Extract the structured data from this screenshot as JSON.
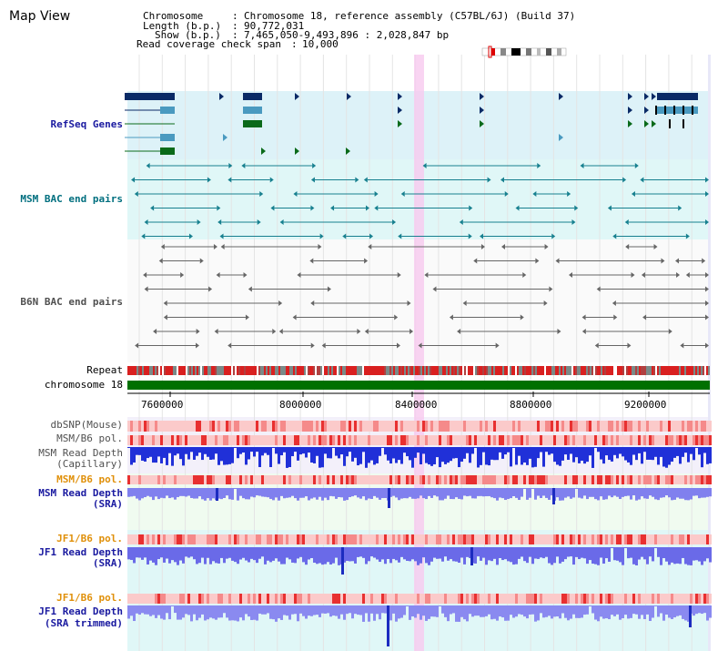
{
  "title": "Map View",
  "header": {
    "chromosome_key": "Chromosome",
    "chromosome_val": "Chromosome 18, reference assembly (C57BL/6J) (Build 37)",
    "length_key": "Length (b.p.)",
    "length_val": "90,772,031",
    "show_key": "Show (b.p.)",
    "show_val": "7,465,050-9,493,896 : 2,028,847 bp",
    "coverage_key": "Read coverage check span",
    "coverage_val": "10,000"
  },
  "tracks": {
    "refseq": "RefSeq Genes",
    "msm_bac": "MSM BAC end pairs",
    "b6n_bac": "B6N BAC end pairs",
    "repeat": "Repeat",
    "chromosome": "chromosome 18",
    "dbsnp": "dbSNP(Mouse)",
    "msm_b6_pol_1": "MSM/B6 pol.",
    "msm_read_depth_cap_1": "MSM Read Depth",
    "msm_read_depth_cap_2": "(Capillary)",
    "msm_b6_pol_2": "MSM/B6 pol.",
    "msm_read_depth_sra_1": "MSM Read Depth",
    "msm_read_depth_sra_2": "(SRA)",
    "jf1_b6_pol_1": "JF1/B6 pol.",
    "jf1_read_depth_sra_1": "JF1 Read Depth",
    "jf1_read_depth_sra_2": "(SRA)",
    "jf1_b6_pol_2": "JF1/B6 pol.",
    "jf1_read_depth_trim_1": "JF1 Read Depth",
    "jf1_read_depth_trim_2": "(SRA trimmed)"
  },
  "ruler": [
    "7600000",
    "8000000",
    "8400000",
    "8800000",
    "9200000"
  ],
  "colors": {
    "refseq_label": "#1a1aa0",
    "msm_label": "#006f7f",
    "b6n_label": "#505050",
    "orange_label": "#e0900a",
    "blue_label": "#1a1aa0",
    "highlight": "#f7c9ef",
    "chromosome_bar": "#007000",
    "depth_blue": "#7777ee"
  }
}
